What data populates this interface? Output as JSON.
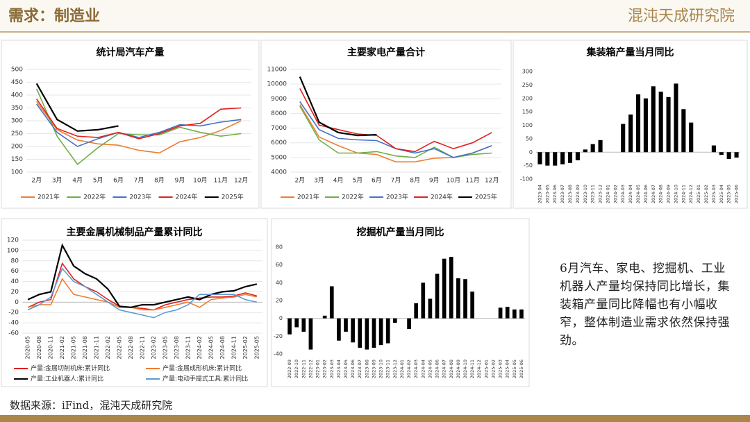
{
  "header": {
    "title": "需求：制造业",
    "logo": "混沌天成研究院"
  },
  "chart_data": [
    {
      "type": "line",
      "title": "统计局汽车产量",
      "legend": "bottom",
      "categories": [
        "2月",
        "3月",
        "4月",
        "5月",
        "6月",
        "7月",
        "8月",
        "9月",
        "10月",
        "11月",
        "12月"
      ],
      "ylim": [
        100,
        500
      ],
      "yticks": [
        100,
        150,
        200,
        250,
        300,
        350,
        400,
        450,
        500
      ],
      "series": [
        {
          "name": "2021年",
          "color": "#ed7d31",
          "values": [
            375,
            265,
            225,
            210,
            205,
            185,
            175,
            218,
            235,
            262,
            300
          ]
        },
        {
          "name": "2022年",
          "color": "#70ad47",
          "values": [
            425,
            240,
            130,
            195,
            250,
            245,
            245,
            275,
            255,
            240,
            250
          ]
        },
        {
          "name": "2023年",
          "color": "#4472c4",
          "values": [
            365,
            255,
            200,
            230,
            255,
            235,
            255,
            285,
            280,
            295,
            305
          ]
        },
        {
          "name": "2024年",
          "color": "#e0201f",
          "values": [
            385,
            270,
            240,
            235,
            255,
            230,
            250,
            280,
            290,
            345,
            350
          ]
        },
        {
          "name": "2025年",
          "color": "#000000",
          "values": [
            445,
            305,
            260,
            265,
            280,
            null,
            null,
            null,
            null,
            null,
            null
          ]
        }
      ]
    },
    {
      "type": "line",
      "title": "主要家电产量合计",
      "legend": "bottom",
      "categories": [
        "2月",
        "3月",
        "4月",
        "5月",
        "6月",
        "7月",
        "8月",
        "9月",
        "10月",
        "11月",
        "12月"
      ],
      "ylim": [
        4000,
        11000
      ],
      "yticks": [
        4000,
        5000,
        6000,
        7000,
        8000,
        9000,
        10000,
        11000
      ],
      "series": [
        {
          "name": "2021年",
          "color": "#ed7d31",
          "values": [
            8600,
            6400,
            5800,
            5300,
            5200,
            4700,
            4700,
            4950,
            5000,
            5300,
            5800
          ]
        },
        {
          "name": "2022年",
          "color": "#70ad47",
          "values": [
            8500,
            6200,
            5300,
            5300,
            5400,
            5100,
            5000,
            5700,
            5000,
            5200,
            5300
          ]
        },
        {
          "name": "2023年",
          "color": "#4472c4",
          "values": [
            8800,
            6900,
            6300,
            6200,
            6150,
            5600,
            5300,
            5600,
            5000,
            5300,
            5800
          ]
        },
        {
          "name": "2024年",
          "color": "#e0201f",
          "values": [
            9700,
            7200,
            6900,
            6600,
            6500,
            5600,
            5400,
            6100,
            5600,
            6000,
            6700
          ]
        },
        {
          "name": "2025年",
          "color": "#000000",
          "values": [
            10500,
            7400,
            6700,
            6500,
            6550,
            null,
            null,
            null,
            null,
            null,
            null
          ]
        }
      ]
    },
    {
      "type": "bar",
      "title": "集装箱产量当月同比",
      "color": "#000000",
      "categories": [
        "2023-04",
        "2023-05",
        "2023-06",
        "2023-07",
        "2023-08",
        "2023-09",
        "2023-10",
        "2023-11",
        "2023-12",
        "2024-01",
        "2024-02",
        "2024-03",
        "2024-04",
        "2024-05",
        "2024-06",
        "2024-07",
        "2024-08",
        "2024-09",
        "2024-10",
        "2024-11",
        "2024-12",
        "2025-01",
        "2025-02",
        "2025-03",
        "2025-04",
        "2025-05",
        "2025-06"
      ],
      "values": [
        -45,
        -50,
        -50,
        -45,
        -40,
        -30,
        10,
        30,
        45,
        null,
        null,
        105,
        140,
        215,
        200,
        245,
        225,
        205,
        255,
        160,
        110,
        null,
        null,
        25,
        -10,
        -25,
        -20
      ],
      "ylim": [
        -100,
        300
      ],
      "yticks": [
        -100,
        -50,
        0,
        50,
        100,
        150,
        200,
        250,
        300
      ]
    },
    {
      "type": "line",
      "title": "主要金属机械制品产量累计同比",
      "legend": "bottom",
      "categories": [
        "2020-05",
        "2020-08",
        "2020-11",
        "2021-02",
        "2021-05",
        "2021-08",
        "2021-11",
        "2022-02",
        "2022-05",
        "2022-08",
        "2022-11",
        "2023-02",
        "2023-05",
        "2023-08",
        "2023-11",
        "2024-02",
        "2024-05",
        "2024-08",
        "2024-11",
        "2025-02",
        "2025-05"
      ],
      "ylim": [
        -60,
        120
      ],
      "yticks": [
        -60,
        -40,
        -20,
        0,
        20,
        40,
        60,
        80,
        100,
        120
      ],
      "series": [
        {
          "name": "产量:金属切削机床:累计同比",
          "color": "#e0201f",
          "values": [
            -10,
            0,
            5,
            75,
            45,
            30,
            20,
            5,
            -8,
            -10,
            -12,
            -15,
            -5,
            0,
            5,
            8,
            10,
            10,
            12,
            18,
            12
          ]
        },
        {
          "name": "产量:金属成形机床:累计同比",
          "color": "#ed7d31",
          "values": [
            -10,
            -5,
            -5,
            45,
            15,
            10,
            5,
            0,
            -10,
            -10,
            -15,
            -15,
            -10,
            -5,
            0,
            -10,
            5,
            8,
            10,
            15,
            10
          ]
        },
        {
          "name": "产量:工业机器人:累计同比",
          "color": "#000000",
          "values": [
            5,
            15,
            20,
            110,
            70,
            55,
            45,
            25,
            -8,
            -10,
            -5,
            -5,
            0,
            5,
            10,
            5,
            15,
            20,
            22,
            30,
            35
          ]
        },
        {
          "name": "产量:电动手提式工具:累计同比",
          "color": "#5b9bd5",
          "values": [
            -15,
            -5,
            10,
            65,
            40,
            30,
            15,
            0,
            -15,
            -20,
            -25,
            -30,
            -20,
            -15,
            -5,
            15,
            15,
            15,
            15,
            5,
            0
          ]
        }
      ]
    },
    {
      "type": "bar",
      "title": "挖掘机产量当月同比",
      "color": "#000000",
      "categories": [
        "2022-09",
        "2022-10",
        "2022-11",
        "2022-12",
        "2023-01",
        "2023-02",
        "2023-03",
        "2023-04",
        "2023-05",
        "2023-06",
        "2023-07",
        "2023-08",
        "2023-09",
        "2023-10",
        "2023-11",
        "2023-12",
        "2024-01",
        "2024-02",
        "2024-03",
        "2024-04",
        "2024-05",
        "2024-06",
        "2024-07",
        "2024-08",
        "2024-09",
        "2024-10",
        "2024-11",
        "2024-12",
        "2025-01",
        "2025-02",
        "2025-03",
        "2025-04",
        "2025-05",
        "2025-06"
      ],
      "values": [
        -18,
        -10,
        -15,
        -35,
        null,
        3,
        36,
        -25,
        -15,
        -27,
        -33,
        -35,
        -33,
        -30,
        -28,
        -5,
        null,
        -12,
        17,
        40,
        22,
        50,
        67,
        69,
        45,
        44,
        30,
        null,
        null,
        null,
        12,
        13,
        10,
        10
      ],
      "ylim": [
        -40,
        80
      ],
      "yticks": [
        -40,
        -20,
        0,
        20,
        40,
        60,
        80
      ]
    }
  ],
  "note": "6月汽车、家电、挖掘机、工业机器人产量均保持同比增长，集装箱产量同比降幅也有小幅收窄，整体制造业需求依然保持强劲。",
  "source": "数据来源：iFind，混沌天成研究院"
}
